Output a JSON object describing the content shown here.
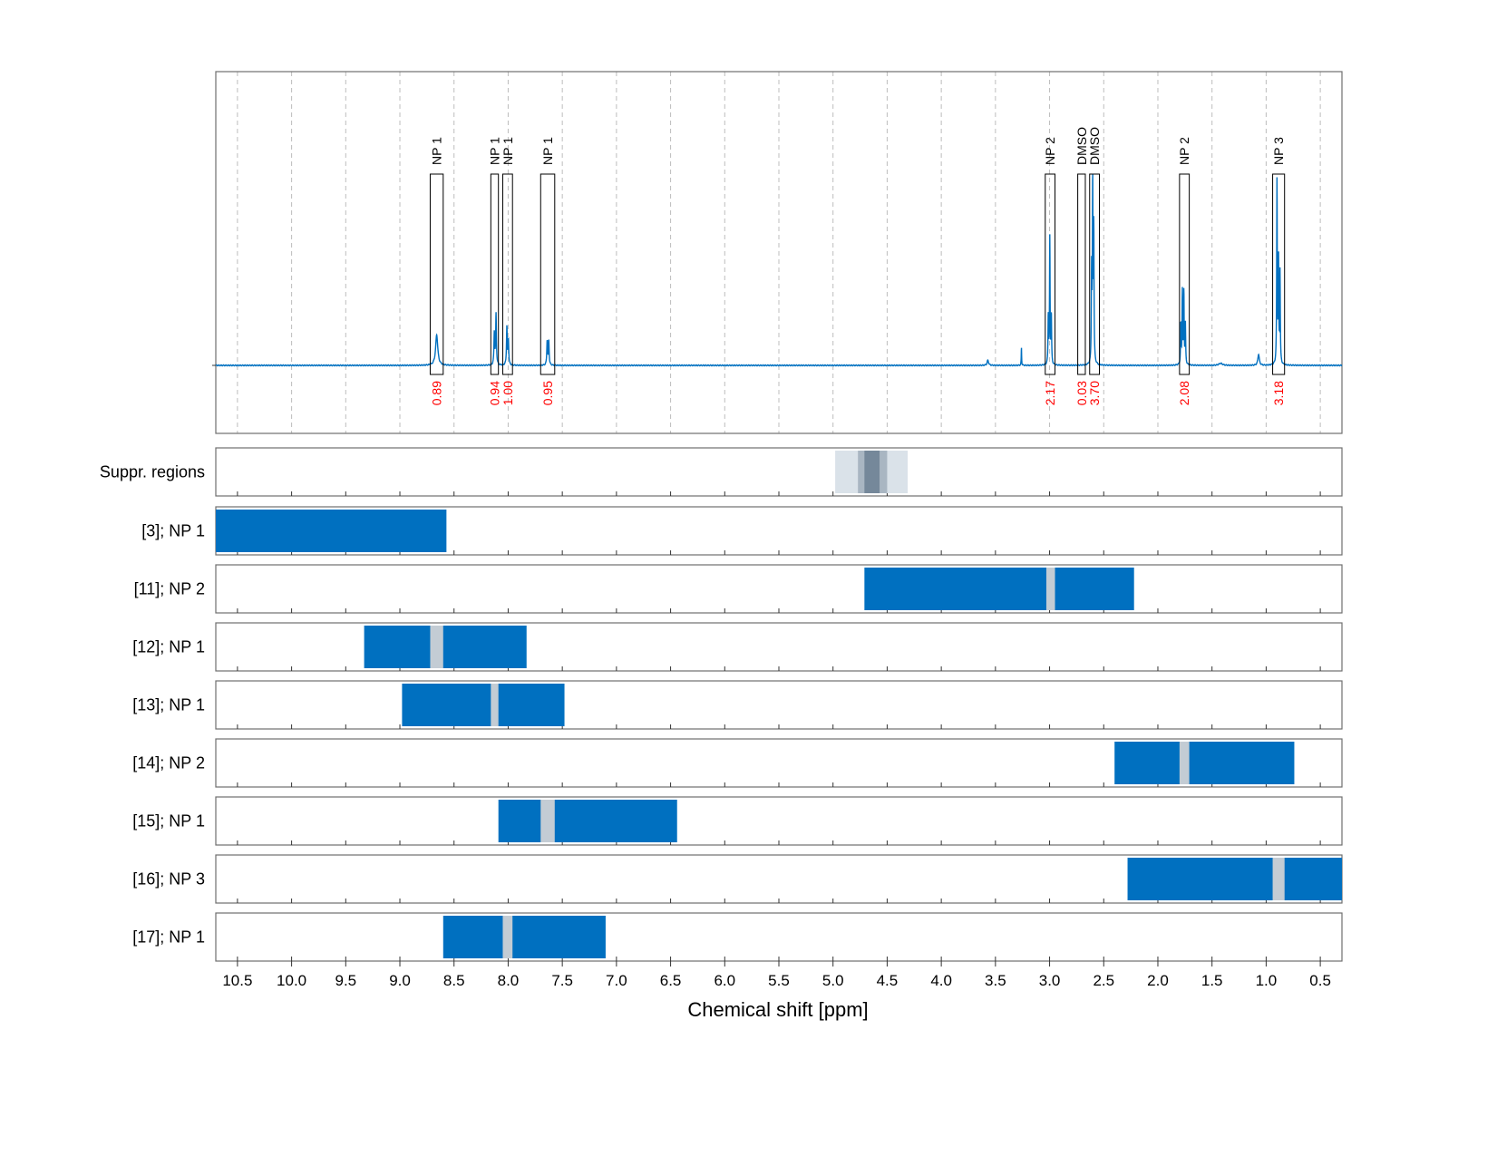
{
  "chart_data": {
    "type": "nmr_spectrum_with_region_panels",
    "xlabel": "Chemical shift [ppm]",
    "x_axis": {
      "range": [
        10.7,
        0.3
      ],
      "reversed": true,
      "ticks": [
        10.5,
        10.0,
        9.5,
        9.0,
        8.5,
        8.0,
        7.5,
        7.0,
        6.5,
        6.0,
        5.5,
        5.0,
        4.5,
        4.0,
        3.5,
        3.0,
        2.5,
        2.0,
        1.5,
        1.0,
        0.5
      ],
      "tick_labels": [
        "10.5",
        "10.0",
        "9.5",
        "9.0",
        "8.5",
        "8.0",
        "7.5",
        "7.0",
        "6.5",
        "6.0",
        "5.5",
        "5.0",
        "4.5",
        "4.0",
        "3.5",
        "3.0",
        "2.5",
        "2.0",
        "1.5",
        "1.0",
        "0.5"
      ]
    },
    "grid": true,
    "spectrum": {
      "color": "#0070c0",
      "peaks": [
        {
          "ppm": 8.66,
          "height": 0.15,
          "width": 0.012
        },
        {
          "ppm": 8.128,
          "height": 0.16,
          "width": 0.004
        },
        {
          "ppm": 8.112,
          "height": 0.25,
          "width": 0.004
        },
        {
          "ppm": 8.012,
          "height": 0.19,
          "width": 0.004
        },
        {
          "ppm": 7.998,
          "height": 0.12,
          "width": 0.004
        },
        {
          "ppm": 7.64,
          "height": 0.12,
          "width": 0.004
        },
        {
          "ppm": 7.625,
          "height": 0.12,
          "width": 0.004
        },
        {
          "ppm": 3.57,
          "height": 0.025,
          "width": 0.008
        },
        {
          "ppm": 3.26,
          "height": 0.09,
          "width": 0.002
        },
        {
          "ppm": 3.012,
          "height": 0.24,
          "width": 0.003
        },
        {
          "ppm": 2.998,
          "height": 0.62,
          "width": 0.003
        },
        {
          "ppm": 2.984,
          "height": 0.24,
          "width": 0.003
        },
        {
          "ppm": 2.612,
          "height": 0.45,
          "width": 0.003
        },
        {
          "ppm": 2.602,
          "height": 0.88,
          "width": 0.003
        },
        {
          "ppm": 2.592,
          "height": 0.66,
          "width": 0.003
        },
        {
          "ppm": 1.788,
          "height": 0.2,
          "width": 0.003
        },
        {
          "ppm": 1.774,
          "height": 0.36,
          "width": 0.003
        },
        {
          "ppm": 1.76,
          "height": 0.36,
          "width": 0.003
        },
        {
          "ppm": 1.746,
          "height": 0.2,
          "width": 0.003
        },
        {
          "ppm": 1.42,
          "height": 0.01,
          "width": 0.02
        },
        {
          "ppm": 1.07,
          "height": 0.055,
          "width": 0.008
        },
        {
          "ppm": 0.9,
          "height": 0.9,
          "width": 0.003
        },
        {
          "ppm": 0.886,
          "height": 0.52,
          "width": 0.003
        },
        {
          "ppm": 0.872,
          "height": 0.45,
          "width": 0.003
        }
      ]
    },
    "peak_regions": [
      {
        "label": "NP 1",
        "from": 8.72,
        "to": 8.6,
        "integral": "0.89"
      },
      {
        "label": "NP 1",
        "from": 8.16,
        "to": 8.09,
        "integral": "0.94"
      },
      {
        "label": "NP 1",
        "from": 8.05,
        "to": 7.96,
        "integral": "1.00"
      },
      {
        "label": "NP 1",
        "from": 7.7,
        "to": 7.57,
        "integral": "0.95"
      },
      {
        "label": "NP 2",
        "from": 3.04,
        "to": 2.95,
        "integral": "2.17"
      },
      {
        "label": "DMSO",
        "from": 2.74,
        "to": 2.67,
        "integral": "0.03"
      },
      {
        "label": "DMSO",
        "from": 2.63,
        "to": 2.54,
        "integral": "3.70"
      },
      {
        "label": "NP 2",
        "from": 1.8,
        "to": 1.71,
        "integral": "2.08"
      },
      {
        "label": "NP 3",
        "from": 0.94,
        "to": 0.83,
        "integral": "3.18"
      }
    ],
    "suppressed_regions": {
      "label": "Suppr. regions",
      "bands": [
        {
          "from": 4.98,
          "to": 4.31,
          "shade": "light"
        },
        {
          "from": 4.77,
          "to": 4.5,
          "shade": "medium"
        },
        {
          "from": 4.71,
          "to": 4.57,
          "shade": "dark"
        }
      ]
    },
    "region_rows": [
      {
        "label": "[3]; NP 1",
        "from": 10.7,
        "to": 8.57,
        "gap": null
      },
      {
        "label": "[11]; NP 2",
        "from": 4.71,
        "to": 2.22,
        "gap": [
          3.03,
          2.95
        ]
      },
      {
        "label": "[12]; NP 1",
        "from": 9.33,
        "to": 7.83,
        "gap": [
          8.72,
          8.6
        ]
      },
      {
        "label": "[13]; NP 1",
        "from": 8.98,
        "to": 7.48,
        "gap": [
          8.16,
          8.09
        ]
      },
      {
        "label": "[14]; NP 2",
        "from": 2.4,
        "to": 0.74,
        "gap": [
          1.8,
          1.71
        ]
      },
      {
        "label": "[15]; NP 1",
        "from": 8.09,
        "to": 6.44,
        "gap": [
          7.7,
          7.57
        ]
      },
      {
        "label": "[16]; NP 3",
        "from": 2.28,
        "to": 0.3,
        "gap": [
          0.94,
          0.83
        ]
      },
      {
        "label": "[17]; NP 1",
        "from": 8.6,
        "to": 7.1,
        "gap": [
          8.05,
          7.96
        ]
      }
    ],
    "colors": {
      "region_fill": "#0070c0",
      "gap_fill": "#c3ccd4",
      "suppr_light": "#dae2e9",
      "suppr_medium": "#a9b6c2",
      "suppr_dark": "#75889a",
      "integral_text": "#ff0000"
    }
  }
}
